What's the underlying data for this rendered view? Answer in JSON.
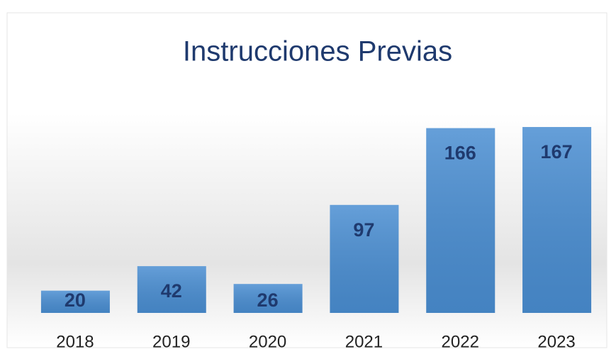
{
  "chart_data": {
    "type": "bar",
    "title": "Instrucciones Previas",
    "categories": [
      "2018",
      "2019",
      "2020",
      "2021",
      "2022",
      "2023"
    ],
    "values": [
      20,
      42,
      26,
      97,
      166,
      167
    ],
    "color": "#4a8ed2"
  }
}
